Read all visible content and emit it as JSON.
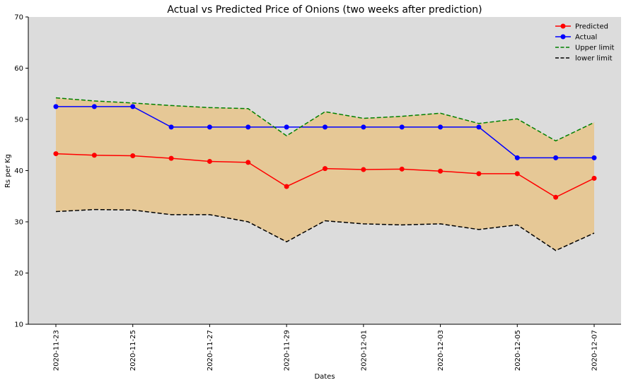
{
  "chart_data": {
    "type": "line",
    "title": "Actual vs Predicted Price of Onions (two weeks after prediction)",
    "xlabel": "Dates",
    "ylabel": "Rs per Kg",
    "ylim": [
      10,
      70
    ],
    "yticks": [
      "10",
      "20",
      "30",
      "40",
      "50",
      "60",
      "70"
    ],
    "x": [
      "2020-11-23",
      "2020-11-24",
      "2020-11-25",
      "2020-11-26",
      "2020-11-27",
      "2020-11-28",
      "2020-11-29",
      "2020-11-30",
      "2020-12-01",
      "2020-12-02",
      "2020-12-03",
      "2020-12-04",
      "2020-12-05",
      "2020-12-06",
      "2020-12-07"
    ],
    "xtick_labels": [
      "2020-11-23",
      "2020-11-25",
      "2020-11-27",
      "2020-11-29",
      "2020-12-01",
      "2020-12-03",
      "2020-12-05",
      "2020-12-07"
    ],
    "grid": false,
    "legend_position": "top-right",
    "background_color": "#dcdcdc",
    "band_fill_color": "#e6c896",
    "series": [
      {
        "name": "Predicted",
        "color": "#ff0000",
        "style": "solid",
        "marker": true,
        "values": [
          43.3,
          43.0,
          42.9,
          42.4,
          41.8,
          41.6,
          36.9,
          40.4,
          40.2,
          40.3,
          39.9,
          39.4,
          39.4,
          34.8,
          38.5
        ]
      },
      {
        "name": "Actual",
        "color": "#0000ff",
        "style": "solid",
        "marker": true,
        "values": [
          52.5,
          52.5,
          52.5,
          48.5,
          48.5,
          48.5,
          48.5,
          48.5,
          48.5,
          48.5,
          48.5,
          48.5,
          42.5,
          42.5,
          42.5
        ]
      },
      {
        "name": "Upper limit",
        "color": "#008000",
        "style": "dashed",
        "marker": false,
        "values": [
          54.2,
          53.6,
          53.2,
          52.7,
          52.3,
          52.1,
          46.8,
          51.5,
          50.2,
          50.6,
          51.2,
          49.2,
          50.1,
          45.8,
          49.4
        ]
      },
      {
        "name": "lower limit",
        "color": "#000000",
        "style": "dashed",
        "marker": false,
        "values": [
          32.0,
          32.4,
          32.3,
          31.4,
          31.4,
          30.0,
          26.1,
          30.2,
          29.6,
          29.4,
          29.6,
          28.5,
          29.4,
          24.4,
          27.8
        ]
      }
    ]
  }
}
